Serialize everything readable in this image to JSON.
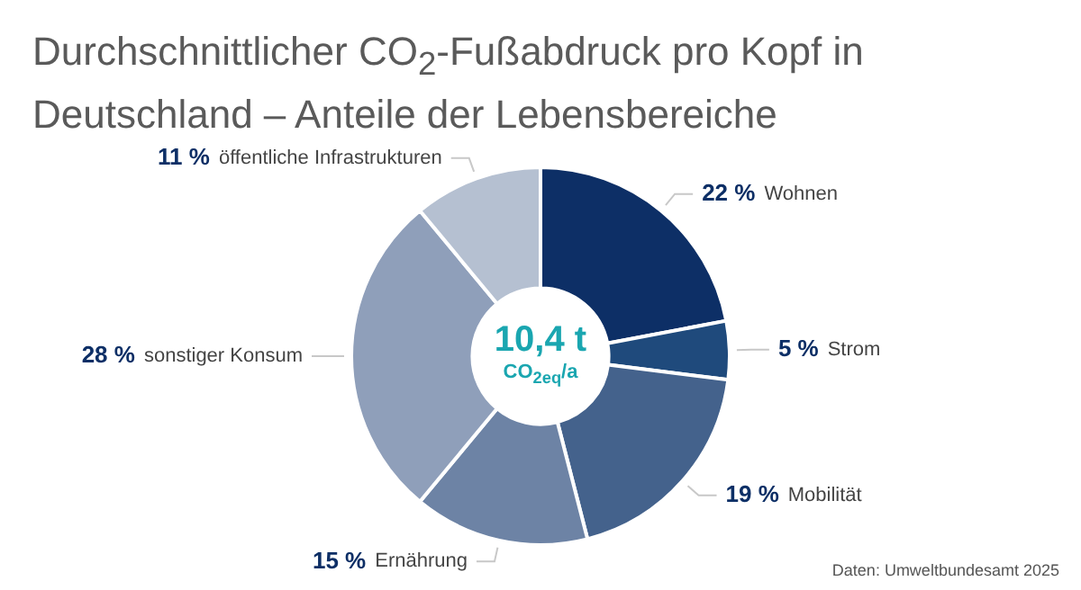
{
  "chart_data": {
    "type": "donut",
    "title": "Durchschnittlicher CO$_{2}$-Fußabdruck pro Kopf in Deutschland – Anteile der Lebensbereiche",
    "categories": [
      "Wohnen",
      "Strom",
      "Mobilität",
      "Ernährung",
      "sonstiger Konsum",
      "öffentliche Infrastrukturen"
    ],
    "values": [
      22,
      5,
      19,
      15,
      28,
      11
    ],
    "value_labels": [
      "22 %",
      "5 %",
      "19 %",
      "15 %",
      "28 %",
      "11 %"
    ],
    "colors": [
      "#0d2f66",
      "#1f4a7c",
      "#44628c",
      "#6d83a5",
      "#8f9fba",
      "#b5c0d1"
    ],
    "legend": false,
    "annotations": [
      "10,4 t",
      "CO$_{2eq}$/a",
      "Daten: Umweltbundesamt 2025"
    ]
  }
}
